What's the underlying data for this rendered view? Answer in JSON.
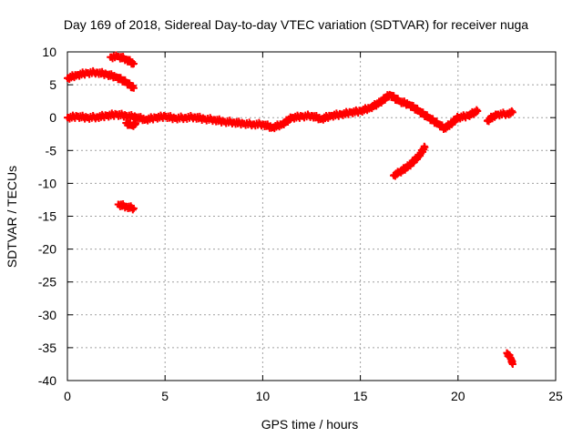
{
  "chart_data": {
    "type": "scatter",
    "title": "Day 169 of 2018, Sidereal Day-to-day VTEC variation (SDTVAR) for receiver nuga",
    "xlabel": "GPS time / hours",
    "ylabel": "SDTVAR / TECUs",
    "xlim": [
      0,
      25
    ],
    "ylim": [
      -40,
      10
    ],
    "xticks": [
      0,
      5,
      10,
      15,
      20,
      25
    ],
    "yticks": [
      10,
      5,
      0,
      -5,
      -10,
      -15,
      -20,
      -25,
      -30,
      -35,
      -40
    ],
    "grid": true,
    "series_color": "#ff0000",
    "series": [
      {
        "name": "main-trace",
        "points": [
          [
            0.0,
            0.0
          ],
          [
            0.5,
            0.2
          ],
          [
            1.0,
            0.0
          ],
          [
            1.5,
            0.1
          ],
          [
            2.0,
            0.3
          ],
          [
            2.5,
            0.5
          ],
          [
            3.0,
            0.3
          ],
          [
            3.5,
            0.1
          ],
          [
            4.0,
            -0.3
          ],
          [
            4.5,
            0.0
          ],
          [
            5.0,
            0.2
          ],
          [
            5.5,
            -0.1
          ],
          [
            6.0,
            0.0
          ],
          [
            6.5,
            0.1
          ],
          [
            7.0,
            -0.2
          ],
          [
            7.5,
            -0.3
          ],
          [
            8.0,
            -0.6
          ],
          [
            8.5,
            -0.7
          ],
          [
            9.0,
            -0.9
          ],
          [
            9.5,
            -1.0
          ],
          [
            10.0,
            -1.0
          ],
          [
            10.5,
            -1.5
          ],
          [
            11.0,
            -1.0
          ],
          [
            11.5,
            0.0
          ],
          [
            12.0,
            0.2
          ],
          [
            12.5,
            0.3
          ],
          [
            13.0,
            -0.2
          ],
          [
            13.5,
            0.3
          ],
          [
            14.0,
            0.5
          ],
          [
            14.5,
            0.8
          ],
          [
            15.0,
            1.0
          ],
          [
            15.5,
            1.5
          ],
          [
            16.0,
            2.3
          ],
          [
            16.5,
            3.5
          ],
          [
            17.0,
            2.5
          ],
          [
            17.5,
            2.0
          ],
          [
            18.0,
            1.0
          ],
          [
            18.5,
            0.0
          ],
          [
            19.0,
            -1.0
          ],
          [
            19.3,
            -1.6
          ],
          [
            19.6,
            -1.0
          ],
          [
            20.0,
            0.0
          ],
          [
            20.5,
            0.3
          ],
          [
            21.0,
            1.0
          ]
        ]
      },
      {
        "name": "late-trace",
        "points": [
          [
            21.5,
            -0.5
          ],
          [
            21.8,
            0.2
          ],
          [
            22.0,
            0.5
          ],
          [
            22.5,
            0.6
          ],
          [
            22.8,
            0.8
          ]
        ]
      },
      {
        "name": "upper-arc",
        "points": [
          [
            0.0,
            6.0
          ],
          [
            0.5,
            6.5
          ],
          [
            1.0,
            6.8
          ],
          [
            1.5,
            6.9
          ],
          [
            2.0,
            6.6
          ],
          [
            2.5,
            6.2
          ],
          [
            3.0,
            5.4
          ],
          [
            3.4,
            4.5
          ]
        ]
      },
      {
        "name": "top-arc",
        "points": [
          [
            2.2,
            9.2
          ],
          [
            2.6,
            9.3
          ],
          [
            3.0,
            8.9
          ],
          [
            3.4,
            8.2
          ]
        ]
      },
      {
        "name": "short-dip",
        "points": [
          [
            3.0,
            -0.8
          ],
          [
            3.3,
            -1.2
          ],
          [
            3.5,
            -0.9
          ]
        ]
      },
      {
        "name": "minus13-segment",
        "points": [
          [
            2.6,
            -13.2
          ],
          [
            3.0,
            -13.5
          ],
          [
            3.4,
            -13.8
          ]
        ]
      },
      {
        "name": "rising-segment",
        "points": [
          [
            16.7,
            -8.8
          ],
          [
            17.0,
            -8.3
          ],
          [
            17.5,
            -7.3
          ],
          [
            18.0,
            -5.8
          ],
          [
            18.3,
            -4.5
          ]
        ]
      },
      {
        "name": "minus36-segment",
        "points": [
          [
            22.5,
            -35.8
          ],
          [
            22.7,
            -36.6
          ],
          [
            22.8,
            -37.5
          ]
        ]
      }
    ]
  }
}
